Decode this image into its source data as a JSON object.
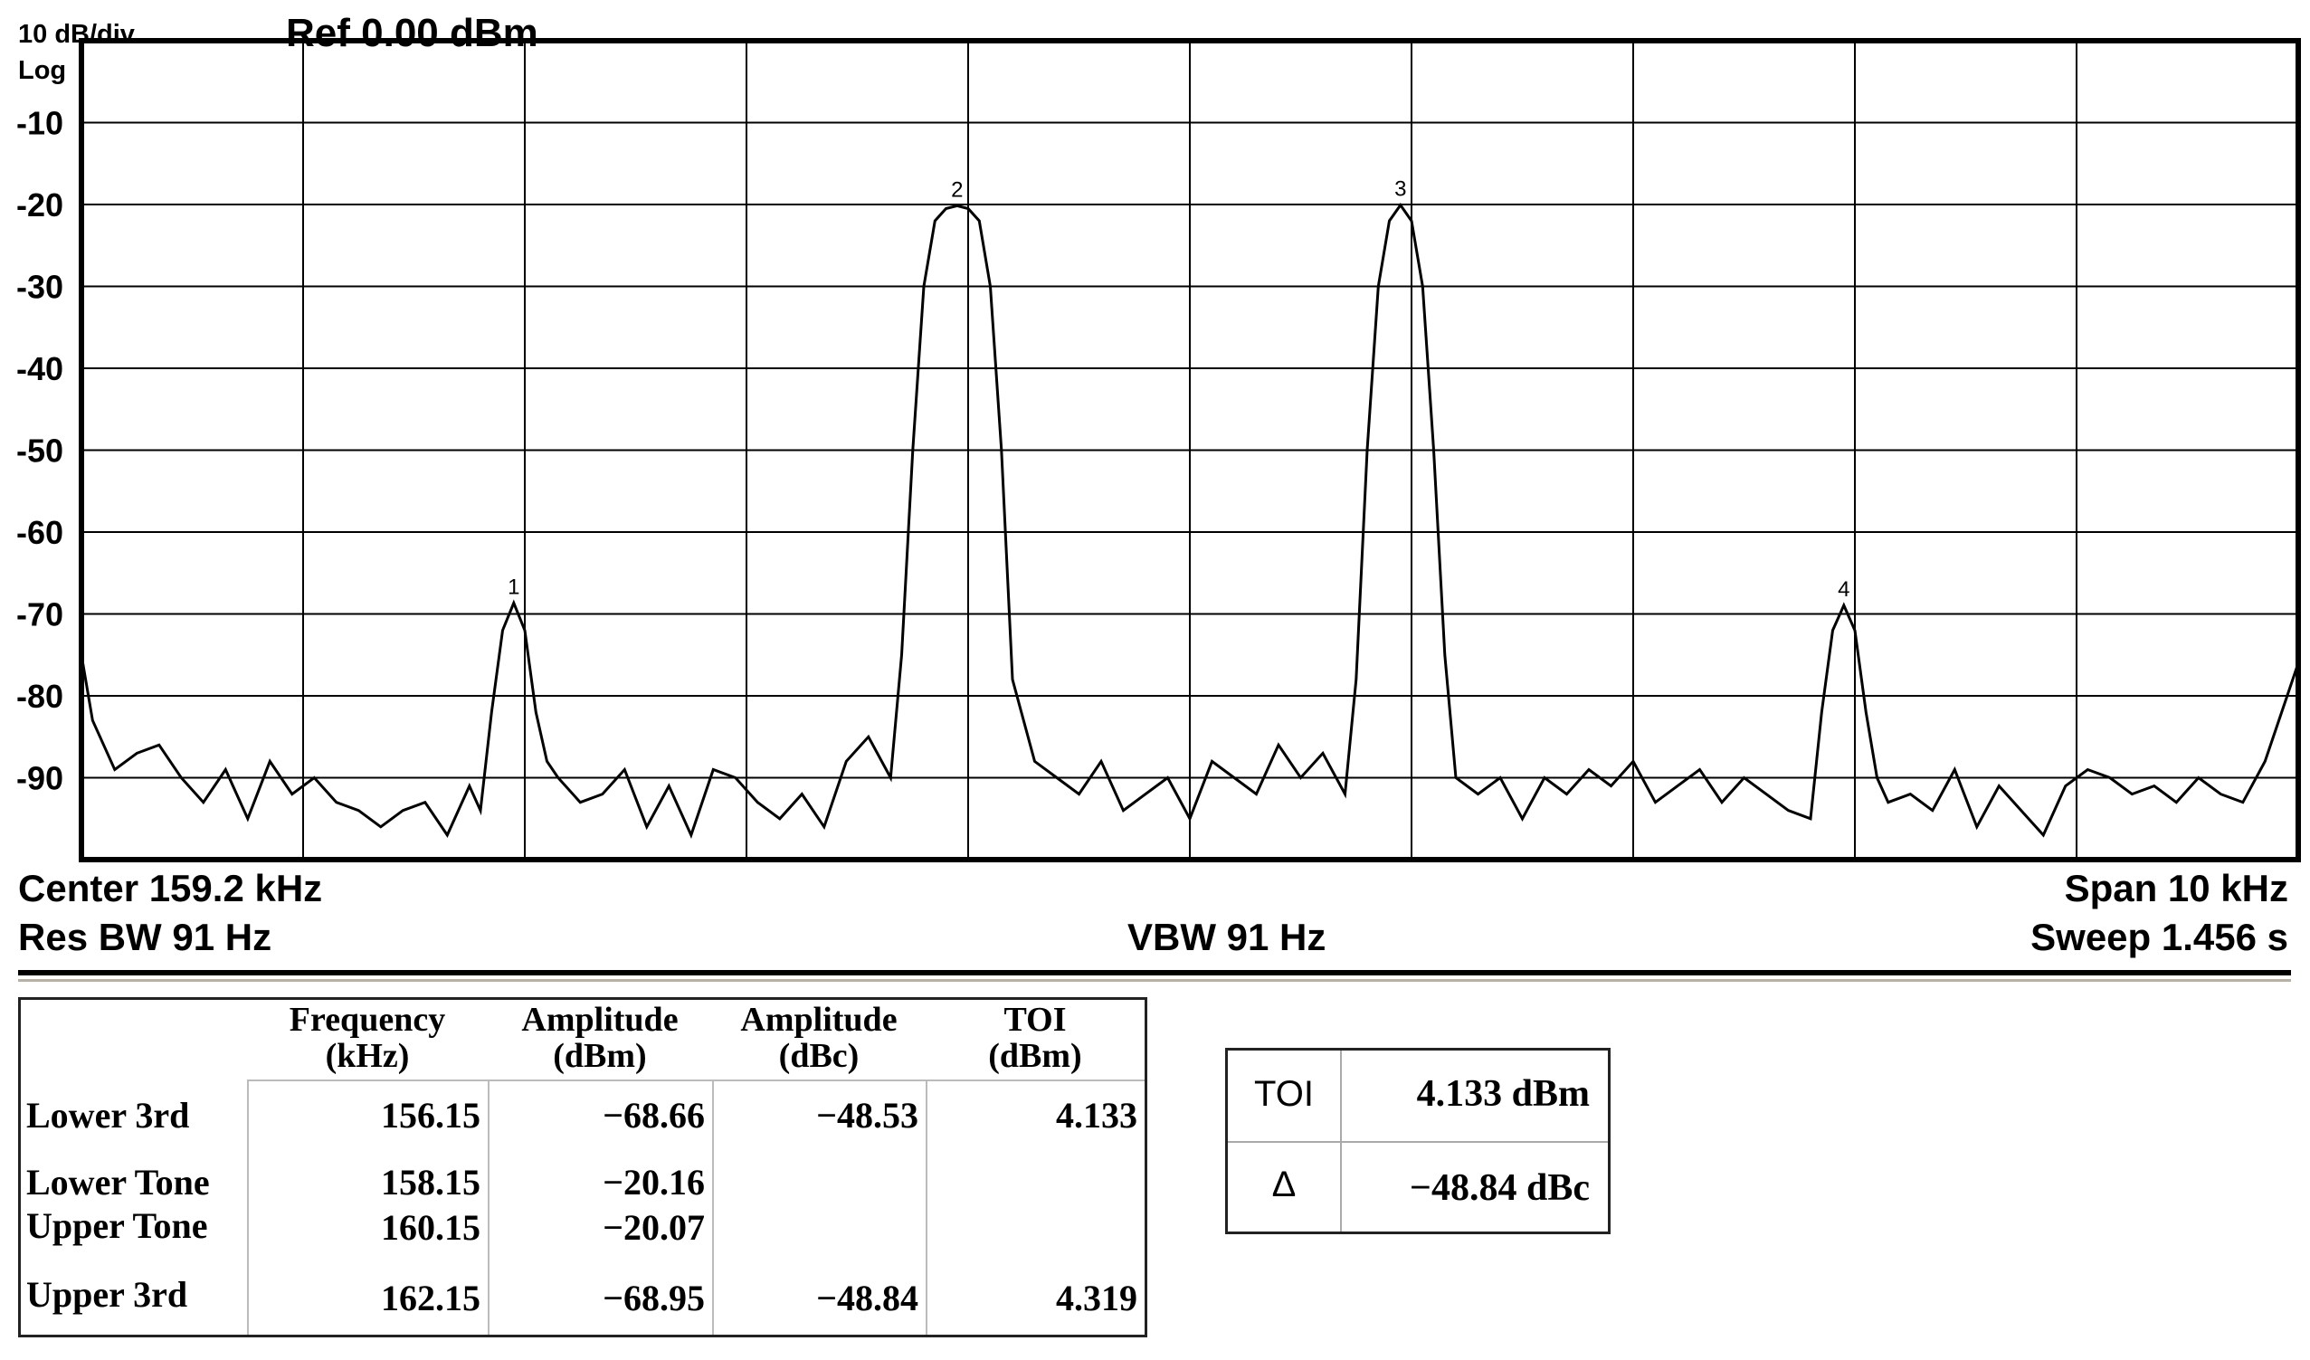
{
  "header": {
    "scale": "10 dB/div",
    "mode": "Log",
    "ref_level": "Ref 0.00 dBm"
  },
  "footer": {
    "center": "Center  159.2 kHz",
    "span": "Span 10 kHz",
    "res_bw": "Res BW  91 Hz",
    "vbw": "VBW  91 Hz",
    "sweep": "Sweep  1.456 s"
  },
  "chart_data": {
    "type": "line",
    "title": "",
    "xlabel": "",
    "ylabel": "",
    "x_unit": "kHz",
    "xlim": [
      154.2,
      164.2
    ],
    "ylim": [
      -100,
      0
    ],
    "y_ticks": [
      -10,
      -20,
      -30,
      -40,
      -50,
      -60,
      -70,
      -80,
      -90
    ],
    "y_tick_labels": [
      "-10",
      "-20",
      "-30",
      "-40",
      "-50",
      "-60",
      "-70",
      "-80",
      "-90"
    ],
    "grid": true,
    "markers": [
      {
        "label": "1",
        "x": 156.15,
        "y": -68.66
      },
      {
        "label": "2",
        "x": 158.15,
        "y": -20.16
      },
      {
        "label": "3",
        "x": 160.15,
        "y": -20.07
      },
      {
        "label": "4",
        "x": 162.15,
        "y": -68.95
      }
    ],
    "series": [
      {
        "x": [
          154.2,
          154.25,
          154.35,
          154.45,
          154.55,
          154.65,
          154.75,
          154.85,
          154.95,
          155.05,
          155.15,
          155.25,
          155.35,
          155.45,
          155.55,
          155.65,
          155.75,
          155.85,
          155.95,
          156.0,
          156.05,
          156.1,
          156.15,
          156.2,
          156.25,
          156.3,
          156.35,
          156.45,
          156.55,
          156.65,
          156.75,
          156.85,
          156.95,
          157.05,
          157.15,
          157.25,
          157.35,
          157.45,
          157.55,
          157.65,
          157.75,
          157.85,
          157.9,
          157.95,
          158.0,
          158.05,
          158.1,
          158.15,
          158.2,
          158.25,
          158.3,
          158.35,
          158.4,
          158.5,
          158.6,
          158.7,
          158.8,
          158.9,
          159.0,
          159.1,
          159.2,
          159.3,
          159.4,
          159.5,
          159.6,
          159.7,
          159.8,
          159.9,
          159.95,
          160.0,
          160.05,
          160.1,
          160.15,
          160.2,
          160.25,
          160.3,
          160.35,
          160.4,
          160.5,
          160.6,
          160.7,
          160.8,
          160.9,
          161.0,
          161.1,
          161.2,
          161.3,
          161.4,
          161.5,
          161.6,
          161.7,
          161.8,
          161.9,
          162.0,
          162.05,
          162.1,
          162.15,
          162.2,
          162.25,
          162.3,
          162.35,
          162.45,
          162.55,
          162.65,
          162.75,
          162.85,
          162.95,
          163.05,
          163.15,
          163.25,
          163.35,
          163.45,
          163.55,
          163.65,
          163.75,
          163.85,
          163.95,
          164.05,
          164.15,
          164.2
        ],
        "y": [
          -75,
          -83,
          -89,
          -87,
          -86,
          -90,
          -93,
          -89,
          -95,
          -88,
          -92,
          -90,
          -93,
          -94,
          -96,
          -94,
          -93,
          -97,
          -91,
          -94,
          -82,
          -72,
          -68.66,
          -72,
          -82,
          -88,
          -90,
          -93,
          -92,
          -89,
          -96,
          -91,
          -97,
          -89,
          -90,
          -93,
          -95,
          -92,
          -96,
          -88,
          -85,
          -90,
          -75,
          -50,
          -30,
          -22,
          -20.5,
          -20.16,
          -20.5,
          -22,
          -30,
          -50,
          -78,
          -88,
          -90,
          -92,
          -88,
          -94,
          -92,
          -90,
          -95,
          -88,
          -90,
          -92,
          -86,
          -90,
          -87,
          -92,
          -78,
          -50,
          -30,
          -22,
          -20.07,
          -22,
          -30,
          -50,
          -75,
          -90,
          -92,
          -90,
          -95,
          -90,
          -92,
          -89,
          -91,
          -88,
          -93,
          -91,
          -89,
          -93,
          -90,
          -92,
          -94,
          -95,
          -82,
          -72,
          -68.95,
          -72,
          -82,
          -90,
          -93,
          -92,
          -94,
          -89,
          -96,
          -91,
          -94,
          -97,
          -91,
          -89,
          -90,
          -92,
          -91,
          -93,
          -90,
          -92,
          -93,
          -88,
          -80,
          -76
        ]
      }
    ]
  },
  "results_table": {
    "columns": [
      "Frequency\n(kHz)",
      "Amplitude\n(dBm)",
      "Amplitude\n(dBc)",
      "TOI\n(dBm)"
    ],
    "column_line1": [
      "Frequency",
      "Amplitude",
      "Amplitude",
      "TOI"
    ],
    "column_line2": [
      "(kHz)",
      "(dBm)",
      "(dBc)",
      "(dBm)"
    ],
    "rows": [
      {
        "label": "Lower 3rd",
        "frequency": "156.15",
        "amplitude_dbm": "−68.66",
        "amplitude_dbc": "−48.53",
        "toi": "4.133"
      },
      {
        "label": "Lower Tone",
        "frequency": "158.15",
        "amplitude_dbm": "−20.16",
        "amplitude_dbc": "",
        "toi": ""
      },
      {
        "label": "Upper Tone",
        "frequency": "160.15",
        "amplitude_dbm": "−20.07",
        "amplitude_dbc": "",
        "toi": ""
      },
      {
        "label": "Upper 3rd",
        "frequency": "162.15",
        "amplitude_dbm": "−68.95",
        "amplitude_dbc": "−48.84",
        "toi": "4.319"
      }
    ]
  },
  "summary": {
    "toi_label": "TOI",
    "toi_value": "4.133 dBm",
    "delta_label": "Δ",
    "delta_value": "−48.84 dBc"
  },
  "colors": {
    "trace": "#000000",
    "grid": "#000000",
    "background": "#ffffff",
    "separator": "#b8b0a0"
  }
}
